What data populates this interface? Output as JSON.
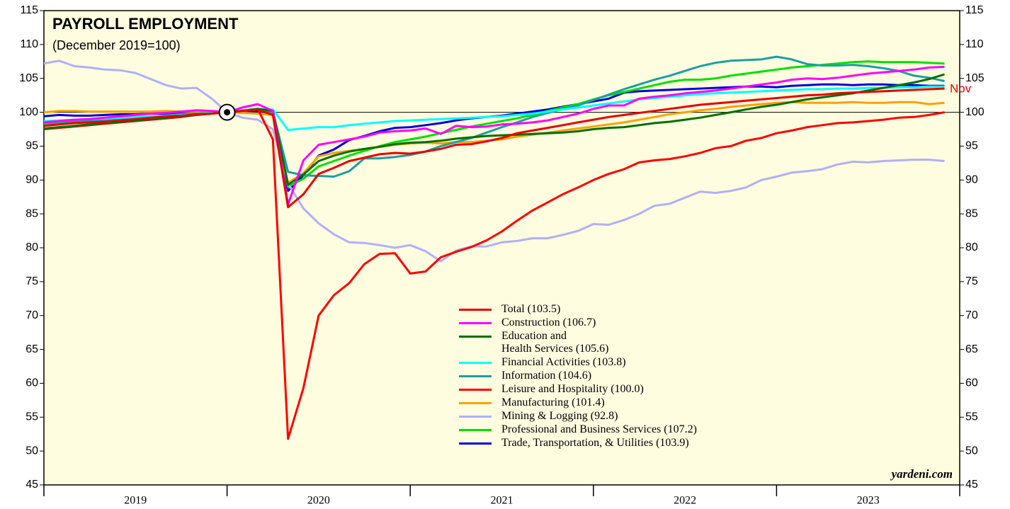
{
  "chart_data": {
    "type": "line",
    "title": "PAYROLL EMPLOYMENT",
    "subtitle": "(December 2019=100)",
    "annotation": "Nov",
    "source": "yardeni.com",
    "reference_line": 100,
    "reference_point": {
      "x": 2020,
      "y": 100
    },
    "xlim": [
      2019,
      2024
    ],
    "xticks": [
      2019,
      2020,
      2021,
      2022,
      2023,
      2024
    ],
    "xtick_labels": [
      {
        "value": 2019.5,
        "label": "2019"
      },
      {
        "value": 2020.5,
        "label": "2020"
      },
      {
        "value": 2021.5,
        "label": "2021"
      },
      {
        "value": 2022.5,
        "label": "2022"
      },
      {
        "value": 2023.5,
        "label": "2023"
      }
    ],
    "ylim": [
      45,
      115
    ],
    "yticks": [
      45,
      50,
      55,
      60,
      65,
      70,
      75,
      80,
      85,
      90,
      95,
      100,
      105,
      110,
      115
    ],
    "x": [
      2019,
      2019.083,
      2019.167,
      2019.25,
      2019.333,
      2019.417,
      2019.5,
      2019.583,
      2019.667,
      2019.75,
      2019.833,
      2019.917,
      2020,
      2020.083,
      2020.167,
      2020.25,
      2020.333,
      2020.417,
      2020.5,
      2020.583,
      2020.667,
      2020.75,
      2020.833,
      2020.917,
      2021,
      2021.083,
      2021.167,
      2021.25,
      2021.333,
      2021.417,
      2021.5,
      2021.583,
      2021.667,
      2021.75,
      2021.833,
      2021.917,
      2022,
      2022.083,
      2022.167,
      2022.25,
      2022.333,
      2022.417,
      2022.5,
      2022.583,
      2022.667,
      2022.75,
      2022.833,
      2022.917,
      2023,
      2023.083,
      2023.167,
      2023.25,
      2023.333,
      2023.417,
      2023.5,
      2023.583,
      2023.667,
      2023.75,
      2023.833,
      2023.917
    ],
    "series": [
      {
        "name": "Total (103.5)",
        "color": "#e80000",
        "values": [
          98.0,
          98.2,
          98.4,
          98.5,
          98.6,
          98.8,
          99.0,
          99.2,
          99.4,
          99.5,
          99.7,
          99.8,
          100.0,
          100.2,
          100.4,
          99.6,
          86.0,
          87.9,
          90.9,
          91.8,
          92.8,
          93.3,
          93.8,
          94.0,
          93.9,
          94.2,
          94.6,
          95.2,
          95.3,
          95.7,
          96.2,
          96.9,
          97.3,
          97.7,
          98.1,
          98.5,
          98.9,
          99.3,
          99.6,
          99.9,
          100.2,
          100.5,
          100.8,
          101.1,
          101.3,
          101.5,
          101.7,
          101.9,
          102.1,
          102.3,
          102.5,
          102.6,
          102.8,
          102.9,
          103.0,
          103.1,
          103.2,
          103.3,
          103.4,
          103.5
        ]
      },
      {
        "name": "Construction (106.7)",
        "color": "#ff00ff",
        "values": [
          98.5,
          98.7,
          98.9,
          99.0,
          99.2,
          99.4,
          99.6,
          99.8,
          99.9,
          100.1,
          100.3,
          100.2,
          100.0,
          100.7,
          101.2,
          100.2,
          86.4,
          92.9,
          95.2,
          95.6,
          96.0,
          96.4,
          97.0,
          97.2,
          97.3,
          97.6,
          96.8,
          98.0,
          97.8,
          97.9,
          98.2,
          98.3,
          98.5,
          98.8,
          99.3,
          99.8,
          100.5,
          101.0,
          101.0,
          102.0,
          102.3,
          102.5,
          102.8,
          103.0,
          103.2,
          103.5,
          103.8,
          104.1,
          104.4,
          104.8,
          105.0,
          104.9,
          105.1,
          105.4,
          105.7,
          105.9,
          106.1,
          106.3,
          106.6,
          106.7
        ]
      },
      {
        "name": "Education and\nHealth Services (105.6)",
        "color": "#007000",
        "values": [
          97.6,
          97.8,
          98.0,
          98.2,
          98.4,
          98.6,
          98.8,
          99.0,
          99.2,
          99.4,
          99.6,
          99.8,
          100.0,
          100.2,
          100.5,
          100.2,
          89.3,
          90.8,
          92.8,
          93.6,
          94.2,
          94.6,
          94.9,
          95.3,
          95.5,
          95.6,
          95.8,
          96.1,
          96.3,
          96.5,
          96.6,
          96.7,
          96.8,
          96.9,
          97.0,
          97.2,
          97.5,
          97.7,
          97.8,
          98.1,
          98.4,
          98.6,
          98.9,
          99.2,
          99.6,
          100.0,
          100.4,
          100.8,
          101.1,
          101.5,
          101.9,
          102.2,
          102.5,
          102.8,
          103.2,
          103.6,
          104.0,
          104.4,
          104.9,
          105.6
        ]
      },
      {
        "name": "Financial Activities (103.8)",
        "color": "#00ffff",
        "values": [
          98.7,
          98.8,
          98.9,
          99.0,
          99.1,
          99.2,
          99.3,
          99.4,
          99.5,
          99.6,
          99.7,
          99.9,
          100.0,
          100.3,
          100.5,
          100.4,
          97.4,
          97.6,
          97.8,
          97.8,
          98.1,
          98.3,
          98.5,
          98.7,
          98.8,
          98.9,
          99.0,
          99.1,
          99.2,
          99.3,
          99.4,
          99.6,
          99.8,
          100.1,
          100.4,
          100.7,
          101.0,
          101.3,
          101.6,
          101.9,
          102.1,
          102.3,
          102.5,
          102.7,
          102.8,
          102.9,
          103.0,
          103.1,
          103.2,
          103.3,
          103.4,
          103.4,
          103.5,
          103.5,
          103.6,
          103.6,
          103.7,
          103.7,
          103.8,
          103.8
        ]
      },
      {
        "name": "Information (104.6)",
        "color": "#1aa0a0",
        "values": [
          98.5,
          98.6,
          98.7,
          98.8,
          98.9,
          99.1,
          99.2,
          99.4,
          99.5,
          99.7,
          99.8,
          99.9,
          100.0,
          100.2,
          100.4,
          100.1,
          91.2,
          90.7,
          90.6,
          90.5,
          91.3,
          93.2,
          93.2,
          93.4,
          93.7,
          94.2,
          95.0,
          95.6,
          96.2,
          97.0,
          97.8,
          98.5,
          99.3,
          99.9,
          100.5,
          101.0,
          101.8,
          102.6,
          103.4,
          104.1,
          104.8,
          105.4,
          106.1,
          106.8,
          107.3,
          107.6,
          107.7,
          107.8,
          108.2,
          107.8,
          107.1,
          106.9,
          106.9,
          107.0,
          106.8,
          106.5,
          106.1,
          105.4,
          105.1,
          104.6
        ]
      },
      {
        "name": "Leisure and Hospitality (100.0)",
        "color": "#ff0000",
        "values": [
          97.5,
          97.7,
          97.9,
          98.1,
          98.3,
          98.5,
          98.7,
          98.9,
          99.1,
          99.3,
          99.6,
          99.8,
          100.0,
          100.3,
          100.5,
          96.0,
          51.8,
          59.3,
          70.0,
          73.0,
          74.8,
          77.6,
          79.1,
          79.2,
          76.2,
          76.5,
          78.6,
          79.4,
          80.1,
          81.1,
          82.4,
          84.0,
          85.5,
          86.7,
          87.9,
          88.9,
          90.0,
          90.9,
          91.6,
          92.6,
          92.9,
          93.1,
          93.5,
          94.0,
          94.7,
          95.0,
          95.8,
          96.2,
          96.9,
          97.3,
          97.8,
          98.1,
          98.4,
          98.5,
          98.7,
          98.9,
          99.2,
          99.3,
          99.6,
          100.0
        ]
      },
      {
        "name": "Manufacturing (101.4)",
        "color": "#ffa000",
        "values": [
          100.0,
          100.2,
          100.2,
          100.1,
          100.1,
          100.1,
          100.1,
          100.1,
          100.2,
          100.1,
          100.1,
          100.0,
          100.0,
          99.9,
          99.8,
          99.6,
          89.6,
          91.0,
          93.5,
          94.0,
          94.3,
          94.6,
          94.9,
          95.2,
          95.4,
          95.5,
          95.4,
          95.6,
          95.6,
          95.8,
          96.0,
          96.4,
          96.7,
          97.0,
          97.3,
          97.6,
          97.9,
          98.2,
          98.5,
          98.9,
          99.3,
          99.7,
          100.0,
          100.3,
          100.5,
          100.8,
          101.0,
          101.2,
          101.4,
          101.5,
          101.4,
          101.4,
          101.4,
          101.5,
          101.4,
          101.4,
          101.5,
          101.5,
          101.2,
          101.4
        ]
      },
      {
        "name": "Mining & Logging (92.8)",
        "color": "#b0b0f8",
        "values": [
          107.2,
          107.6,
          106.8,
          106.6,
          106.3,
          106.2,
          105.8,
          104.9,
          104.0,
          103.5,
          103.6,
          102.0,
          100.0,
          99.2,
          98.9,
          97.5,
          89.5,
          85.8,
          83.6,
          82.0,
          80.8,
          80.7,
          80.4,
          80.0,
          80.4,
          79.5,
          78.0,
          79.6,
          80.2,
          80.2,
          80.8,
          81.0,
          81.4,
          81.4,
          81.9,
          82.5,
          83.5,
          83.4,
          84.1,
          85.0,
          86.2,
          86.5,
          87.4,
          88.3,
          88.1,
          88.4,
          88.9,
          90.0,
          90.5,
          91.1,
          91.3,
          91.6,
          92.3,
          92.7,
          92.6,
          92.8,
          92.9,
          93.0,
          93.0,
          92.8
        ]
      },
      {
        "name": "Professional and Business Services (107.2)",
        "color": "#00e000",
        "values": [
          98.2,
          98.3,
          98.5,
          98.6,
          98.8,
          98.9,
          99.1,
          99.2,
          99.4,
          99.5,
          99.7,
          99.8,
          100.0,
          100.2,
          100.4,
          99.8,
          89.0,
          90.2,
          92.0,
          92.8,
          93.6,
          94.3,
          95.0,
          95.6,
          96.0,
          96.4,
          96.9,
          97.4,
          97.9,
          98.3,
          98.7,
          99.1,
          99.6,
          100.2,
          100.7,
          101.2,
          101.9,
          102.5,
          103.0,
          103.5,
          104.0,
          104.5,
          104.8,
          104.8,
          105.0,
          105.4,
          105.7,
          106.0,
          106.3,
          106.6,
          106.8,
          107.0,
          107.2,
          107.4,
          107.5,
          107.4,
          107.4,
          107.4,
          107.3,
          107.2
        ]
      },
      {
        "name": "Trade, Transportation, & Utilities (103.9)",
        "color": "#0000e0",
        "values": [
          99.4,
          99.6,
          99.5,
          99.5,
          99.6,
          99.7,
          99.7,
          99.8,
          99.8,
          99.9,
          99.9,
          100.0,
          100.0,
          100.1,
          100.2,
          99.8,
          88.4,
          90.7,
          93.6,
          94.5,
          95.9,
          96.5,
          97.2,
          97.7,
          97.8,
          98.1,
          98.4,
          98.8,
          99.1,
          99.3,
          99.5,
          99.8,
          100.1,
          100.4,
          100.8,
          101.2,
          101.6,
          102.0,
          102.9,
          103.1,
          103.2,
          103.3,
          103.4,
          103.5,
          103.6,
          103.7,
          103.8,
          103.8,
          103.7,
          103.9,
          104.0,
          104.1,
          104.1,
          104.0,
          104.1,
          104.1,
          104.0,
          104.0,
          103.9,
          103.9
        ]
      }
    ]
  }
}
